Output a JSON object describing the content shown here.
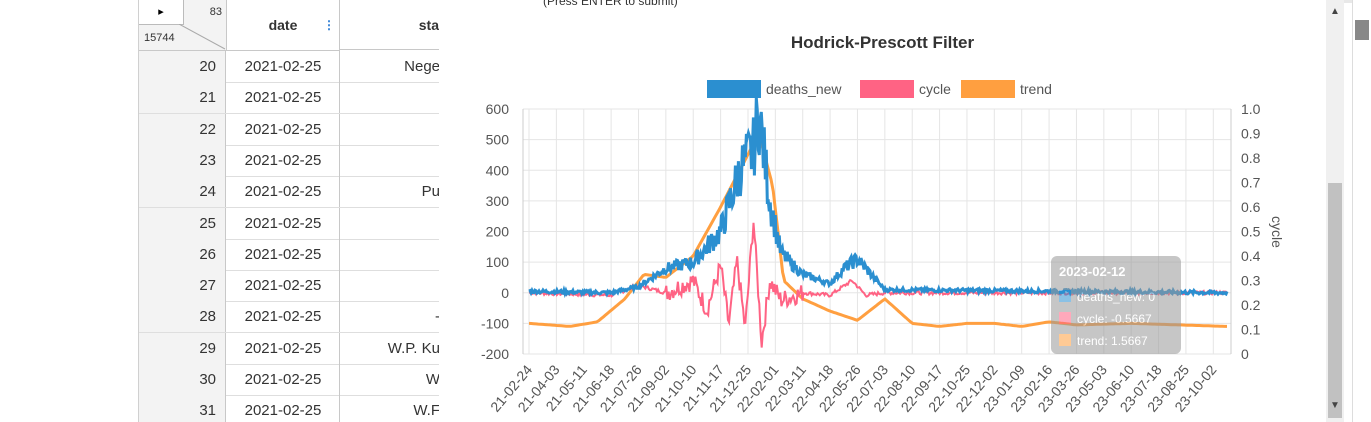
{
  "grid": {
    "corner": {
      "arrow": "▸",
      "count_top": "83",
      "count_bottom": "15744"
    },
    "columns": [
      {
        "label": "date"
      },
      {
        "label": "sta"
      }
    ],
    "rows": [
      {
        "idx": "20",
        "date": "2021-02-25",
        "state": "Nege"
      },
      {
        "idx": "21",
        "date": "2021-02-25",
        "state": ""
      },
      {
        "idx": "22",
        "date": "2021-02-25",
        "state": ""
      },
      {
        "idx": "23",
        "date": "2021-02-25",
        "state": ""
      },
      {
        "idx": "24",
        "date": "2021-02-25",
        "state": "Pu"
      },
      {
        "idx": "25",
        "date": "2021-02-25",
        "state": ""
      },
      {
        "idx": "26",
        "date": "2021-02-25",
        "state": ""
      },
      {
        "idx": "27",
        "date": "2021-02-25",
        "state": ""
      },
      {
        "idx": "28",
        "date": "2021-02-25",
        "state": "-"
      },
      {
        "idx": "29",
        "date": "2021-02-25",
        "state": "W.P. Ku"
      },
      {
        "idx": "30",
        "date": "2021-02-25",
        "state": "W"
      },
      {
        "idx": "31",
        "date": "2021-02-25",
        "state": "W.F"
      }
    ]
  },
  "overlay": {
    "instruction": "(Press ENTER to submit)"
  },
  "chart_data": {
    "type": "line",
    "title": "Hodrick-Prescott Filter",
    "legend_position": "top",
    "series": [
      {
        "name": "deaths_new",
        "color": "#2b8fd0",
        "axis": "left"
      },
      {
        "name": "cycle",
        "color": "#ff6384",
        "axis": "right"
      },
      {
        "name": "trend",
        "color": "#ff9f40",
        "axis": "left"
      }
    ],
    "y_left": {
      "min": -200,
      "max": 600,
      "ticks": [
        "600",
        "500",
        "400",
        "300",
        "200",
        "100",
        "0",
        "-100",
        "-200"
      ]
    },
    "y_right": {
      "label": "cycle",
      "min": 0,
      "max": 1.0,
      "ticks": [
        "1.0",
        "0.9",
        "0.8",
        "0.7",
        "0.6",
        "0.5",
        "0.4",
        "0.3",
        "0.2",
        "0.1",
        "0"
      ]
    },
    "x_ticks": [
      "2021-02-24",
      "2021-04-03",
      "2021-05-11",
      "2021-06-18",
      "2021-07-26",
      "2021-09-02",
      "2021-10-10",
      "2021-11-17",
      "2021-12-25",
      "2022-02-01",
      "2022-03-11",
      "2022-04-18",
      "2022-05-26",
      "2022-07-03",
      "2022-08-10",
      "2022-09-17",
      "2022-10-25",
      "2022-12-02",
      "2023-01-09",
      "2023-02-16",
      "2023-03-26",
      "2023-05-03",
      "2023-06-10",
      "2023-07-18",
      "2023-08-25",
      "2023-10-02"
    ],
    "x_tick_display": [
      "21-02-24",
      "21-04-03",
      "21-05-11",
      "21-06-18",
      "21-07-26",
      "21-09-02",
      "21-10-10",
      "21-11-17",
      "21-12-25",
      "22-02-01",
      "22-03-11",
      "22-04-18",
      "22-05-26",
      "22-07-03",
      "22-08-10",
      "22-09-17",
      "22-10-25",
      "22-12-02",
      "23-01-09",
      "23-02-16",
      "23-03-26",
      "23-05-03",
      "23-06-10",
      "23-07-18",
      "23-08-25",
      "23-10-02"
    ],
    "deaths_new_keypoints": [
      [
        0,
        5
      ],
      [
        3,
        0
      ],
      [
        4,
        20
      ],
      [
        5,
        80
      ],
      [
        6,
        100
      ],
      [
        7,
        200
      ],
      [
        7.7,
        400
      ],
      [
        8.2,
        470
      ],
      [
        8.4,
        590
      ],
      [
        8.8,
        300
      ],
      [
        9.2,
        130
      ],
      [
        10,
        60
      ],
      [
        11,
        30
      ],
      [
        11.5,
        80
      ],
      [
        12,
        110
      ],
      [
        12.5,
        60
      ],
      [
        13,
        10
      ],
      [
        25.5,
        0
      ]
    ],
    "trend_keypoints": [
      [
        0,
        -100
      ],
      [
        1.5,
        -110
      ],
      [
        2.5,
        -95
      ],
      [
        3.5,
        -20
      ],
      [
        4.2,
        60
      ],
      [
        5,
        50
      ],
      [
        6,
        120
      ],
      [
        7,
        280
      ],
      [
        7.7,
        400
      ],
      [
        8.4,
        520
      ],
      [
        8.9,
        350
      ],
      [
        9.3,
        40
      ],
      [
        10,
        -20
      ],
      [
        11,
        -60
      ],
      [
        12,
        -90
      ],
      [
        13,
        -20
      ],
      [
        14,
        -100
      ],
      [
        15,
        -110
      ],
      [
        16,
        -100
      ],
      [
        17,
        -100
      ],
      [
        18,
        -110
      ],
      [
        19,
        -95
      ],
      [
        20,
        -105
      ],
      [
        22,
        -100
      ],
      [
        25.5,
        -110
      ]
    ],
    "cycle_keypoints": [
      [
        0,
        0.25
      ],
      [
        3,
        0.24
      ],
      [
        4,
        0.28
      ],
      [
        5,
        0.25
      ],
      [
        6,
        0.3
      ],
      [
        6.5,
        0.18
      ],
      [
        7,
        0.36
      ],
      [
        7.3,
        0.12
      ],
      [
        7.6,
        0.38
      ],
      [
        7.9,
        0.1
      ],
      [
        8.2,
        0.55
      ],
      [
        8.5,
        0.05
      ],
      [
        8.8,
        0.3
      ],
      [
        9.2,
        0.22
      ],
      [
        10,
        0.25
      ],
      [
        11,
        0.24
      ],
      [
        11.8,
        0.3
      ],
      [
        12.3,
        0.24
      ],
      [
        13,
        0.25
      ],
      [
        25.5,
        0.25
      ]
    ],
    "tooltip": {
      "date": "2023-02-12",
      "lines": [
        "deaths_new: 0",
        "cycle: -0.5667",
        "trend: 1.5667"
      ]
    }
  }
}
